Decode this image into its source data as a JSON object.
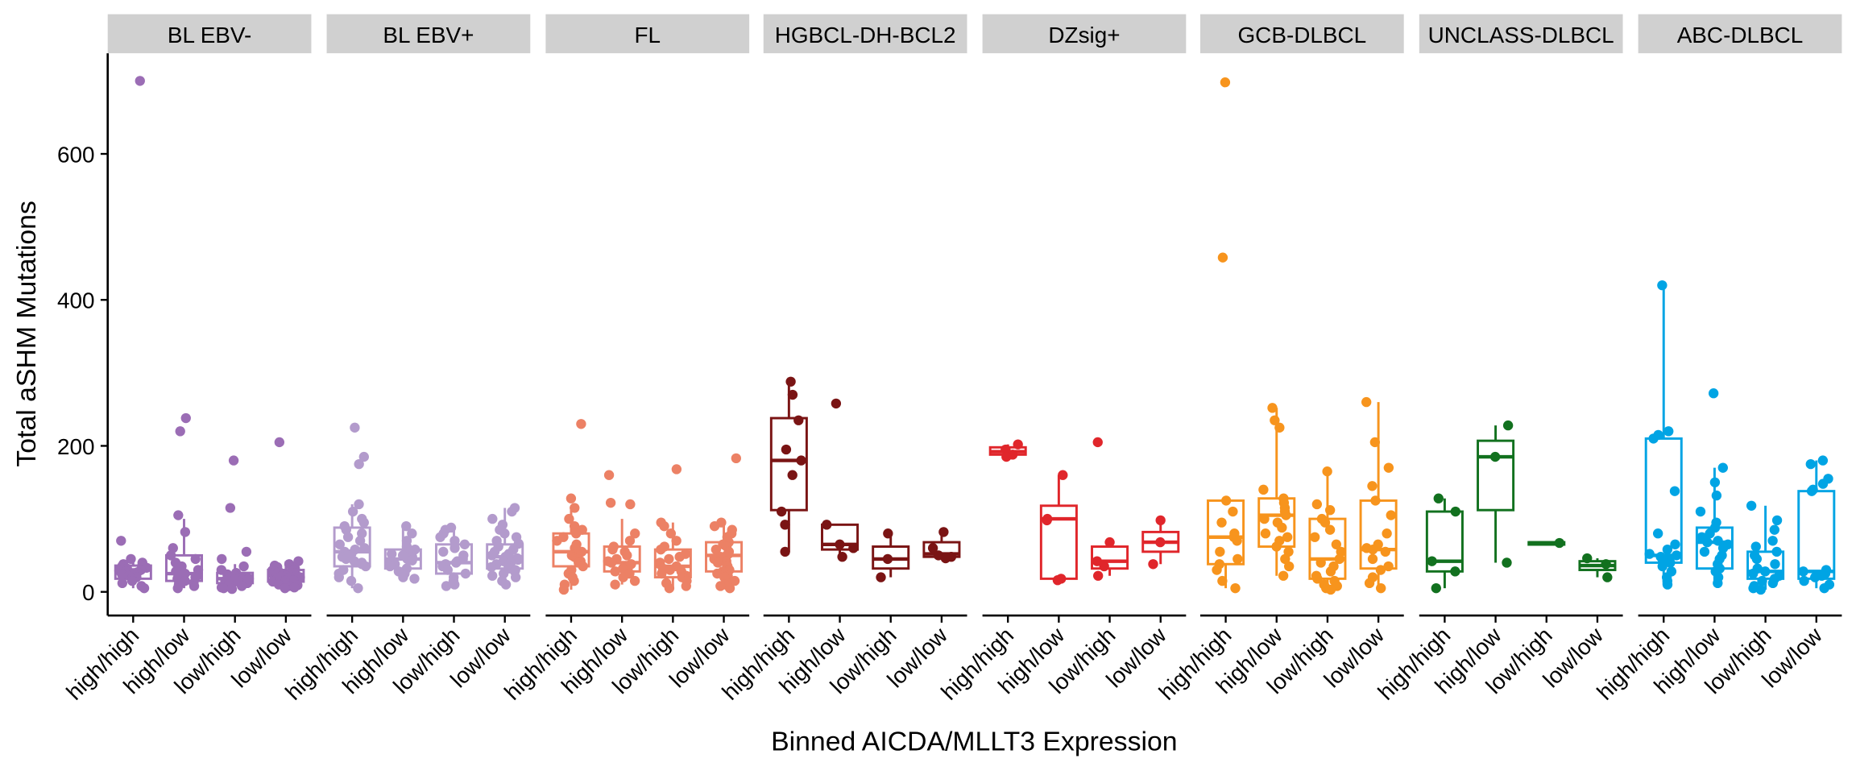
{
  "chart_data": {
    "type": "box",
    "title": "",
    "xlabel": "Binned AICDA/MLLT3 Expression",
    "ylabel": "Total aSHM Mutations",
    "ylim": [
      -30,
      730
    ],
    "yticks": [
      0,
      200,
      400,
      600
    ],
    "categories": [
      "high/high",
      "high/low",
      "low/high",
      "low/low"
    ],
    "grid": false,
    "legend": "none",
    "panels": [
      {
        "name": "BL EBV-",
        "color": "#9b6db5",
        "boxes": [
          {
            "category": "high/high",
            "q1": 18,
            "median": 30,
            "q3": 36,
            "lo": 5,
            "hi": 48,
            "points": [
              700,
              70,
              45,
              40,
              38,
              36,
              35,
              33,
              32,
              30,
              29,
              28,
              27,
              25,
              24,
              22,
              20,
              18,
              15,
              12,
              8,
              5
            ]
          },
          {
            "category": "high/low",
            "q1": 15,
            "median": 25,
            "q3": 50,
            "lo": 5,
            "hi": 100,
            "points": [
              238,
              220,
              105,
              82,
              60,
              50,
              45,
              40,
              35,
              30,
              28,
              25,
              22,
              20,
              18,
              15,
              12,
              10,
              8,
              5
            ]
          },
          {
            "category": "low/high",
            "q1": 12,
            "median": 18,
            "q3": 26,
            "lo": 4,
            "hi": 38,
            "points": [
              180,
              115,
              55,
              45,
              35,
              30,
              26,
              24,
              22,
              20,
              19,
              18,
              17,
              16,
              15,
              14,
              12,
              10,
              8,
              6,
              5,
              4
            ]
          },
          {
            "category": "low/low",
            "q1": 14,
            "median": 22,
            "q3": 30,
            "lo": 5,
            "hi": 42,
            "points": [
              205,
              42,
              38,
              36,
              34,
              32,
              30,
              29,
              28,
              27,
              26,
              25,
              24,
              23,
              22,
              21,
              20,
              19,
              18,
              16,
              15,
              14,
              13,
              12,
              10,
              9,
              8,
              7,
              6,
              5
            ]
          }
        ]
      },
      {
        "name": "BL EBV+",
        "color": "#b39bcc",
        "boxes": [
          {
            "category": "high/high",
            "q1": 35,
            "median": 55,
            "q3": 88,
            "lo": 5,
            "hi": 120,
            "points": [
              225,
              185,
              175,
              120,
              110,
              100,
              95,
              90,
              85,
              80,
              75,
              70,
              65,
              60,
              58,
              55,
              52,
              50,
              48,
              45,
              42,
              40,
              38,
              35,
              30,
              25,
              20,
              15,
              5
            ]
          },
          {
            "category": "high/low",
            "q1": 32,
            "median": 45,
            "q3": 58,
            "lo": 18,
            "hi": 90,
            "points": [
              90,
              80,
              70,
              62,
              58,
              55,
              52,
              50,
              48,
              45,
              43,
              40,
              38,
              35,
              32,
              28,
              25,
              20,
              18
            ]
          },
          {
            "category": "low/high",
            "q1": 25,
            "median": 40,
            "q3": 65,
            "lo": 8,
            "hi": 88,
            "points": [
              88,
              85,
              80,
              75,
              70,
              65,
              60,
              55,
              50,
              45,
              42,
              40,
              38,
              35,
              30,
              25,
              20,
              15,
              10,
              8
            ]
          },
          {
            "category": "low/low",
            "q1": 32,
            "median": 48,
            "q3": 65,
            "lo": 10,
            "hi": 115,
            "points": [
              115,
              110,
              100,
              92,
              85,
              80,
              75,
              70,
              66,
              62,
              58,
              55,
              52,
              50,
              48,
              46,
              44,
              42,
              40,
              38,
              36,
              34,
              32,
              30,
              28,
              25,
              22,
              20,
              15,
              10
            ]
          }
        ]
      },
      {
        "name": "FL",
        "color": "#ec8165",
        "boxes": [
          {
            "category": "high/high",
            "q1": 35,
            "median": 55,
            "q3": 80,
            "lo": 3,
            "hi": 115,
            "points": [
              230,
              128,
              115,
              100,
              90,
              85,
              80,
              75,
              70,
              65,
              60,
              55,
              52,
              50,
              48,
              45,
              42,
              40,
              35,
              30,
              25,
              20,
              15,
              10,
              3
            ]
          },
          {
            "category": "high/low",
            "q1": 28,
            "median": 40,
            "q3": 62,
            "lo": 10,
            "hi": 100,
            "points": [
              160,
              122,
              120,
              80,
              70,
              62,
              58,
              55,
              50,
              45,
              42,
              40,
              38,
              35,
              32,
              28,
              25,
              20,
              15,
              10
            ]
          },
          {
            "category": "low/high",
            "q1": 20,
            "median": 35,
            "q3": 58,
            "lo": 5,
            "hi": 95,
            "points": [
              168,
              95,
              90,
              80,
              70,
              62,
              58,
              52,
              48,
              45,
              40,
              38,
              35,
              32,
              30,
              28,
              25,
              22,
              20,
              15,
              12,
              8,
              5
            ]
          },
          {
            "category": "low/low",
            "q1": 28,
            "median": 50,
            "q3": 68,
            "lo": 5,
            "hi": 95,
            "points": [
              183,
              95,
              90,
              85,
              80,
              75,
              70,
              68,
              65,
              62,
              58,
              55,
              52,
              50,
              48,
              45,
              42,
              40,
              38,
              35,
              30,
              28,
              25,
              22,
              20,
              15,
              12,
              10,
              8,
              5
            ]
          }
        ]
      },
      {
        "name": "HGBCL-DH-BCL2",
        "color": "#7a1414",
        "boxes": [
          {
            "category": "high/high",
            "q1": 112,
            "median": 180,
            "q3": 238,
            "lo": 55,
            "hi": 288,
            "points": [
              288,
              270,
              235,
              195,
              180,
              160,
              110,
              92,
              55
            ]
          },
          {
            "category": "high/low",
            "q1": 58,
            "median": 65,
            "q3": 92,
            "lo": 48,
            "hi": 92,
            "points": [
              258,
              92,
              65,
              60,
              48
            ]
          },
          {
            "category": "low/high",
            "q1": 32,
            "median": 45,
            "q3": 62,
            "lo": 20,
            "hi": 80,
            "points": [
              80,
              45,
              20
            ]
          },
          {
            "category": "low/low",
            "q1": 48,
            "median": 52,
            "q3": 68,
            "lo": 45,
            "hi": 82,
            "points": [
              82,
              60,
              50,
              48,
              46
            ]
          }
        ]
      },
      {
        "name": "DZsig+",
        "color": "#e0262b",
        "boxes": [
          {
            "category": "high/high",
            "q1": 188,
            "median": 192,
            "q3": 198,
            "lo": 185,
            "hi": 202,
            "points": [
              202,
              195,
              188,
              185
            ]
          },
          {
            "category": "high/low",
            "q1": 18,
            "median": 100,
            "q3": 118,
            "lo": 18,
            "hi": 160,
            "points": [
              160,
              100,
              98,
              18,
              16
            ]
          },
          {
            "category": "low/high",
            "q1": 32,
            "median": 42,
            "q3": 62,
            "lo": 22,
            "hi": 68,
            "points": [
              205,
              68,
              42,
              35,
              22
            ]
          },
          {
            "category": "low/low",
            "q1": 55,
            "median": 68,
            "q3": 82,
            "lo": 38,
            "hi": 98,
            "points": [
              98,
              68,
              38
            ]
          }
        ]
      },
      {
        "name": "GCB-DLBCL",
        "color": "#f7941d",
        "boxes": [
          {
            "category": "high/high",
            "q1": 38,
            "median": 75,
            "q3": 125,
            "lo": 5,
            "hi": 125,
            "points": [
              698,
              458,
              125,
              110,
              95,
              80,
              75,
              70,
              55,
              45,
              38,
              30,
              15,
              5
            ]
          },
          {
            "category": "high/low",
            "q1": 62,
            "median": 105,
            "q3": 128,
            "lo": 22,
            "hi": 252,
            "points": [
              252,
              235,
              225,
              140,
              128,
              122,
              115,
              110,
              105,
              100,
              95,
              88,
              80,
              75,
              70,
              62,
              55,
              45,
              35,
              22
            ]
          },
          {
            "category": "low/high",
            "q1": 18,
            "median": 45,
            "q3": 100,
            "lo": 3,
            "hi": 165,
            "points": [
              165,
              120,
              112,
              100,
              95,
              85,
              75,
              65,
              55,
              45,
              40,
              35,
              28,
              22,
              18,
              15,
              10,
              8,
              5,
              3
            ]
          },
          {
            "category": "low/low",
            "q1": 32,
            "median": 58,
            "q3": 125,
            "lo": 5,
            "hi": 260,
            "points": [
              260,
              205,
              170,
              145,
              125,
              105,
              80,
              65,
              60,
              58,
              55,
              45,
              35,
              30,
              20,
              12,
              5
            ]
          }
        ]
      },
      {
        "name": "UNCLASS-DLBCL",
        "color": "#12711f",
        "boxes": [
          {
            "category": "high/high",
            "q1": 28,
            "median": 42,
            "q3": 110,
            "lo": 5,
            "hi": 128,
            "points": [
              128,
              110,
              42,
              28,
              5
            ]
          },
          {
            "category": "high/low",
            "q1": 112,
            "median": 185,
            "q3": 207,
            "lo": 40,
            "hi": 228,
            "points": [
              228,
              185,
              40
            ]
          },
          {
            "category": "low/high",
            "q1": 66,
            "median": 67,
            "q3": 68,
            "lo": 66,
            "hi": 68,
            "points": [
              67
            ]
          },
          {
            "category": "low/low",
            "q1": 30,
            "median": 36,
            "q3": 42,
            "lo": 20,
            "hi": 46,
            "points": [
              46,
              38,
              20
            ]
          }
        ]
      },
      {
        "name": "ABC-DLBCL",
        "color": "#00a4e4",
        "boxes": [
          {
            "category": "high/high",
            "q1": 40,
            "median": 50,
            "q3": 210,
            "lo": 10,
            "hi": 420,
            "points": [
              420,
              220,
              215,
              210,
              138,
              80,
              65,
              58,
              52,
              50,
              48,
              45,
              42,
              40,
              35,
              28,
              20,
              15,
              10
            ]
          },
          {
            "category": "high/low",
            "q1": 32,
            "median": 68,
            "q3": 88,
            "lo": 12,
            "hi": 170,
            "points": [
              272,
              170,
              150,
              132,
              110,
              95,
              88,
              80,
              75,
              70,
              68,
              65,
              60,
              55,
              50,
              45,
              38,
              32,
              28,
              20,
              12
            ]
          },
          {
            "category": "low/high",
            "q1": 18,
            "median": 28,
            "q3": 55,
            "lo": 3,
            "hi": 118,
            "points": [
              118,
              98,
              85,
              70,
              62,
              55,
              50,
              45,
              38,
              32,
              28,
              25,
              22,
              18,
              15,
              12,
              8,
              5,
              3
            ]
          },
          {
            "category": "low/low",
            "q1": 18,
            "median": 28,
            "q3": 138,
            "lo": 5,
            "hi": 180,
            "points": [
              180,
              175,
              155,
              148,
              140,
              138,
              30,
              28,
              25,
              22,
              20,
              15,
              10,
              5
            ]
          }
        ]
      }
    ]
  }
}
